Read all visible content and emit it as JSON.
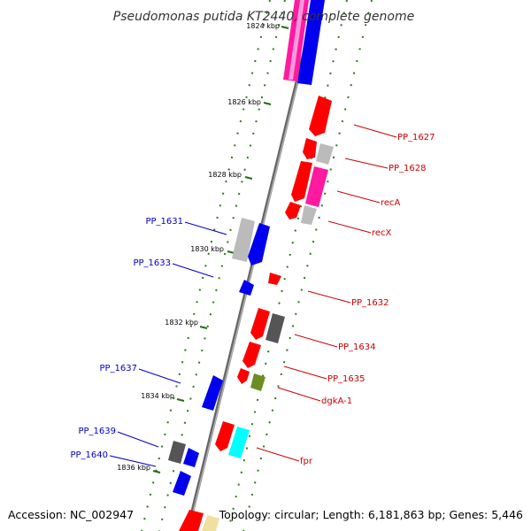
{
  "title": "Pseudomonas putida KT2440, complete genome",
  "footer": {
    "accession": "Accession: NC_002947",
    "topology": "Topology: circular; Length: 6,181,863 bp; Genes: 5,446"
  },
  "colors": {
    "backbone": "#888888",
    "tick": "#2a7a1a",
    "red_gene": "#ff0000",
    "pink_gene": "#ff1aa0",
    "blue_gene": "#0000ee",
    "gray_gene": "#bbbbbb",
    "dark_gene": "#555555",
    "cyan_gene": "#00ffff",
    "olive_gene": "#6b8e23",
    "yellow_gene": "#f0e0a0",
    "label_right": "#cc0000",
    "label_left": "#0000cc"
  },
  "kbp_labels": [
    "1824 kbp",
    "1826 kbp",
    "1828 kbp",
    "1830 kbp",
    "1832 kbp",
    "1834 kbp",
    "1836 kbp"
  ],
  "labels_right": [
    "PP_1627",
    "PP_1628",
    "recA",
    "recX",
    "PP_1632",
    "PP_1634",
    "PP_1635",
    "dgkA-1",
    "fpr"
  ],
  "labels_left": [
    "PP_1631",
    "PP_1633",
    "PP_1637",
    "PP_1639",
    "PP_1640"
  ]
}
